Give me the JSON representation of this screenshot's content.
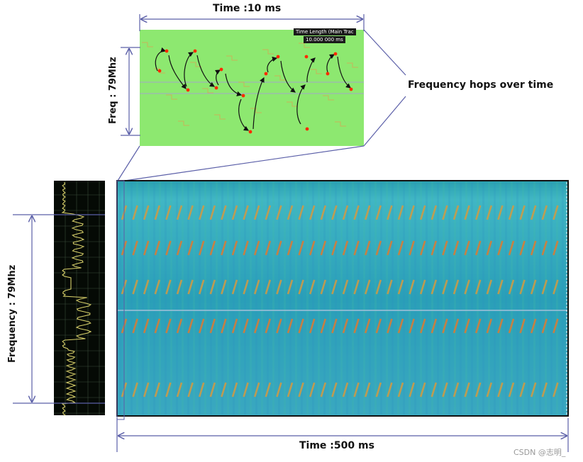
{
  "labels": {
    "top_time": "Time :10 ms",
    "top_freq": "Freq : 79Mhz",
    "hops": "Frequency hops over time",
    "left_freq": "Frequency : 79Mhz",
    "bottom_time": "Time :500 ms",
    "watermark": "CSDN @志明_"
  },
  "zoom_inset": {
    "badge_line1": "Time Length (Main Trac",
    "badge_line2": "10.000 000 ms",
    "background_color": "#8de870",
    "hop_color": "#ff2a00"
  },
  "spectrogram": {
    "background_color": "#34a8b8",
    "band_color": "#e07a30",
    "hop_columns": 40
  },
  "colors": {
    "annotation_line": "#5b5fa8",
    "spectrum_bg": "#050a05",
    "spectrum_trace": "#d8d06a"
  }
}
